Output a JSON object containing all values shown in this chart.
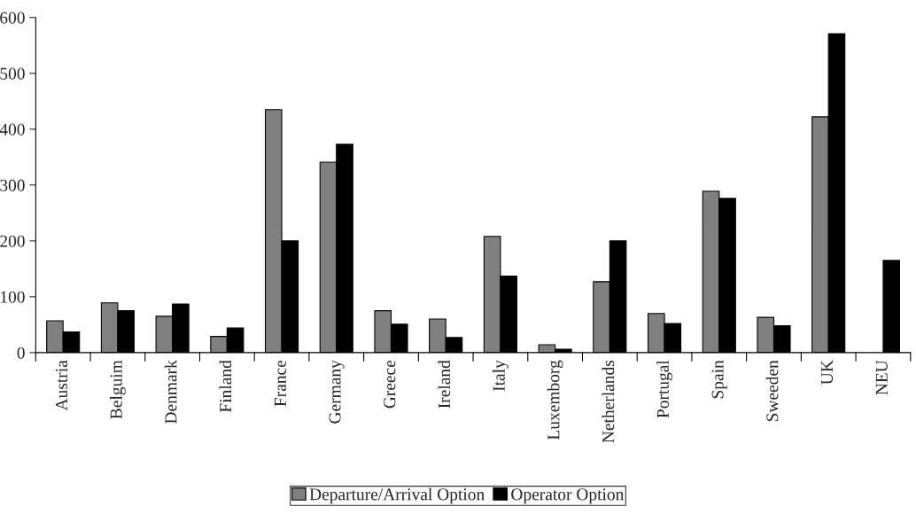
{
  "chart_data": {
    "type": "bar",
    "categories": [
      "Austria",
      "Belguim",
      "Denmark",
      "Finland",
      "France",
      "Germany",
      "Greece",
      "Ireland",
      "Italy",
      "Luxemborg",
      "Netherlands",
      "Portugal",
      "Spain",
      "Sweeden",
      "UK",
      "NEU"
    ],
    "series": [
      {
        "name": "Departure/Arrival Option",
        "color": "#808080",
        "values": [
          57,
          89,
          65,
          29,
          435,
          341,
          75,
          60,
          208,
          14,
          127,
          70,
          289,
          63,
          422,
          null
        ]
      },
      {
        "name": "Operator Option",
        "color": "#000000",
        "values": [
          37,
          75,
          87,
          44,
          200,
          373,
          51,
          27,
          137,
          6,
          200,
          52,
          276,
          48,
          571,
          165
        ]
      }
    ],
    "ylim": [
      0,
      600
    ],
    "yticks": [
      0,
      100,
      200,
      300,
      400,
      500,
      600
    ],
    "grid": false,
    "legend": "bottom"
  }
}
